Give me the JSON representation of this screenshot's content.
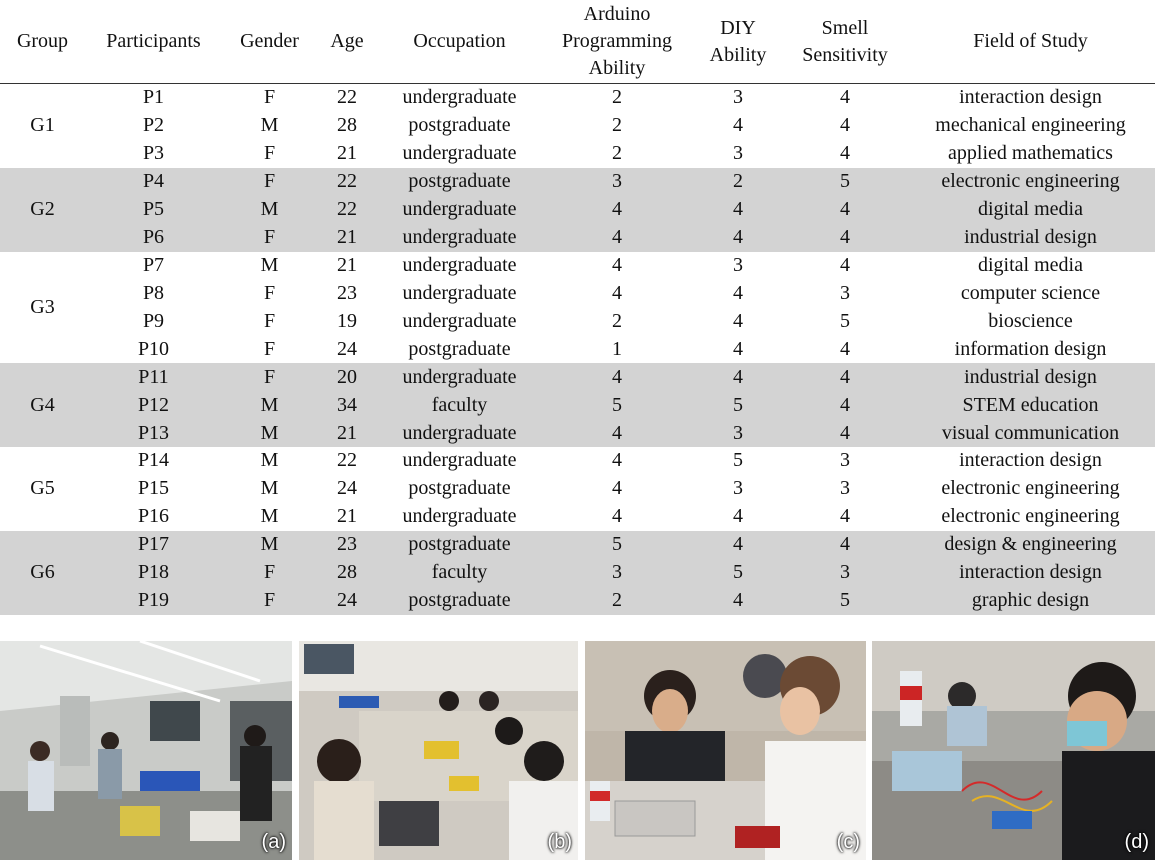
{
  "table": {
    "headers": [
      {
        "lines": [
          "Group"
        ]
      },
      {
        "lines": [
          "Participants"
        ]
      },
      {
        "lines": [
          "Gender"
        ]
      },
      {
        "lines": [
          "Age"
        ]
      },
      {
        "lines": [
          "Occupation"
        ]
      },
      {
        "lines": [
          "Arduino",
          "Programming",
          "Ability"
        ]
      },
      {
        "lines": [
          "DIY",
          "Ability"
        ]
      },
      {
        "lines": [
          "Smell",
          "Sensitivity"
        ]
      },
      {
        "lines": [
          "Field of Study"
        ]
      }
    ],
    "groups": [
      {
        "name": "G1",
        "shaded": false,
        "rows": [
          [
            "P1",
            "F",
            "22",
            "undergraduate",
            "2",
            "3",
            "4",
            "interaction design"
          ],
          [
            "P2",
            "M",
            "28",
            "postgraduate",
            "2",
            "4",
            "4",
            "mechanical engineering"
          ],
          [
            "P3",
            "F",
            "21",
            "undergraduate",
            "2",
            "3",
            "4",
            "applied mathematics"
          ]
        ]
      },
      {
        "name": "G2",
        "shaded": true,
        "rows": [
          [
            "P4",
            "F",
            "22",
            "postgraduate",
            "3",
            "2",
            "5",
            "electronic engineering"
          ],
          [
            "P5",
            "M",
            "22",
            "undergraduate",
            "4",
            "4",
            "4",
            "digital media"
          ],
          [
            "P6",
            "F",
            "21",
            "undergraduate",
            "4",
            "4",
            "4",
            "industrial design"
          ]
        ]
      },
      {
        "name": "G3",
        "shaded": false,
        "rows": [
          [
            "P7",
            "M",
            "21",
            "undergraduate",
            "4",
            "3",
            "4",
            "digital media"
          ],
          [
            "P8",
            "F",
            "23",
            "undergraduate",
            "4",
            "4",
            "3",
            "computer science"
          ],
          [
            "P9",
            "F",
            "19",
            "undergraduate",
            "2",
            "4",
            "5",
            "bioscience"
          ],
          [
            "P10",
            "F",
            "24",
            "postgraduate",
            "1",
            "4",
            "4",
            "information design"
          ]
        ]
      },
      {
        "name": "G4",
        "shaded": true,
        "rows": [
          [
            "P11",
            "F",
            "20",
            "undergraduate",
            "4",
            "4",
            "4",
            "industrial design"
          ],
          [
            "P12",
            "M",
            "34",
            "faculty",
            "5",
            "5",
            "4",
            "STEM education"
          ],
          [
            "P13",
            "M",
            "21",
            "undergraduate",
            "4",
            "3",
            "4",
            "visual communication"
          ]
        ]
      },
      {
        "name": "G5",
        "shaded": false,
        "rows": [
          [
            "P14",
            "M",
            "22",
            "undergraduate",
            "4",
            "5",
            "3",
            "interaction design"
          ],
          [
            "P15",
            "M",
            "24",
            "postgraduate",
            "4",
            "3",
            "3",
            "electronic engineering"
          ],
          [
            "P16",
            "M",
            "21",
            "undergraduate",
            "4",
            "4",
            "4",
            "electronic engineering"
          ]
        ]
      },
      {
        "name": "G6",
        "shaded": true,
        "rows": [
          [
            "P17",
            "M",
            "23",
            "postgraduate",
            "5",
            "4",
            "4",
            "design & engineering"
          ],
          [
            "P18",
            "F",
            "28",
            "faculty",
            "3",
            "5",
            "3",
            "interaction design"
          ],
          [
            "P19",
            "F",
            "24",
            "postgraduate",
            "2",
            "4",
            "5",
            "graphic design"
          ]
        ]
      }
    ],
    "shade_color": "#d3d3d3"
  },
  "photos": [
    {
      "label": "(a)"
    },
    {
      "label": "(b)"
    },
    {
      "label": "(c)"
    },
    {
      "label": "(d)"
    }
  ]
}
